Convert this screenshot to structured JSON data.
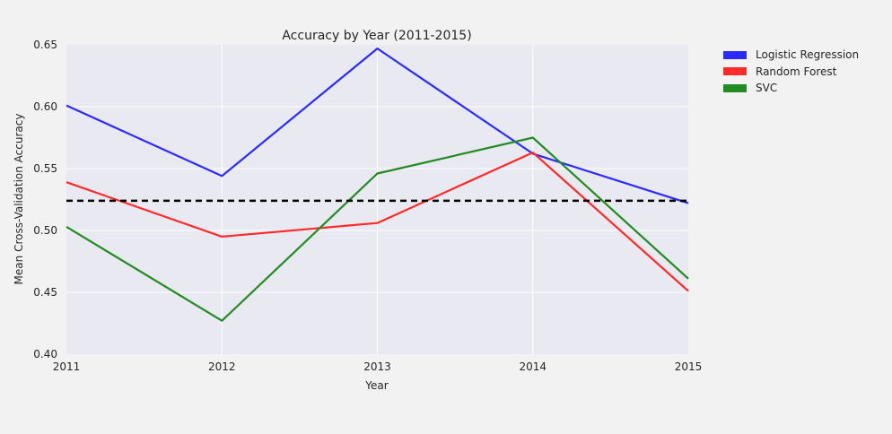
{
  "chart_data": {
    "type": "line",
    "title": "Accuracy by Year (2011-2015)",
    "xlabel": "Year",
    "ylabel": "Mean Cross-Validation Accuracy",
    "x": [
      2011,
      2012,
      2013,
      2014,
      2015
    ],
    "x_tick_labels": [
      "2011",
      "2012",
      "2013",
      "2014",
      "2015"
    ],
    "y_tick_labels": [
      "0.40",
      "0.45",
      "0.50",
      "0.55",
      "0.60",
      "0.65"
    ],
    "y_ticks": [
      0.4,
      0.45,
      0.5,
      0.55,
      0.6,
      0.65
    ],
    "xlim": [
      2011,
      2015
    ],
    "ylim": [
      0.4,
      0.65
    ],
    "grid": true,
    "legend_position": "outside-right-top",
    "series": [
      {
        "name": "Logistic Regression",
        "color": "#2b2bff",
        "values": [
          0.601,
          0.544,
          0.647,
          0.562,
          0.522
        ]
      },
      {
        "name": "Random Forest",
        "color": "#ff2a2a",
        "values": [
          0.539,
          0.495,
          0.506,
          0.563,
          0.451
        ]
      },
      {
        "name": "SVC",
        "color": "#228b22",
        "values": [
          0.503,
          0.427,
          0.546,
          0.575,
          0.461
        ]
      }
    ],
    "reference_line": {
      "value": 0.524,
      "color": "#000000",
      "style": "dashed"
    }
  }
}
